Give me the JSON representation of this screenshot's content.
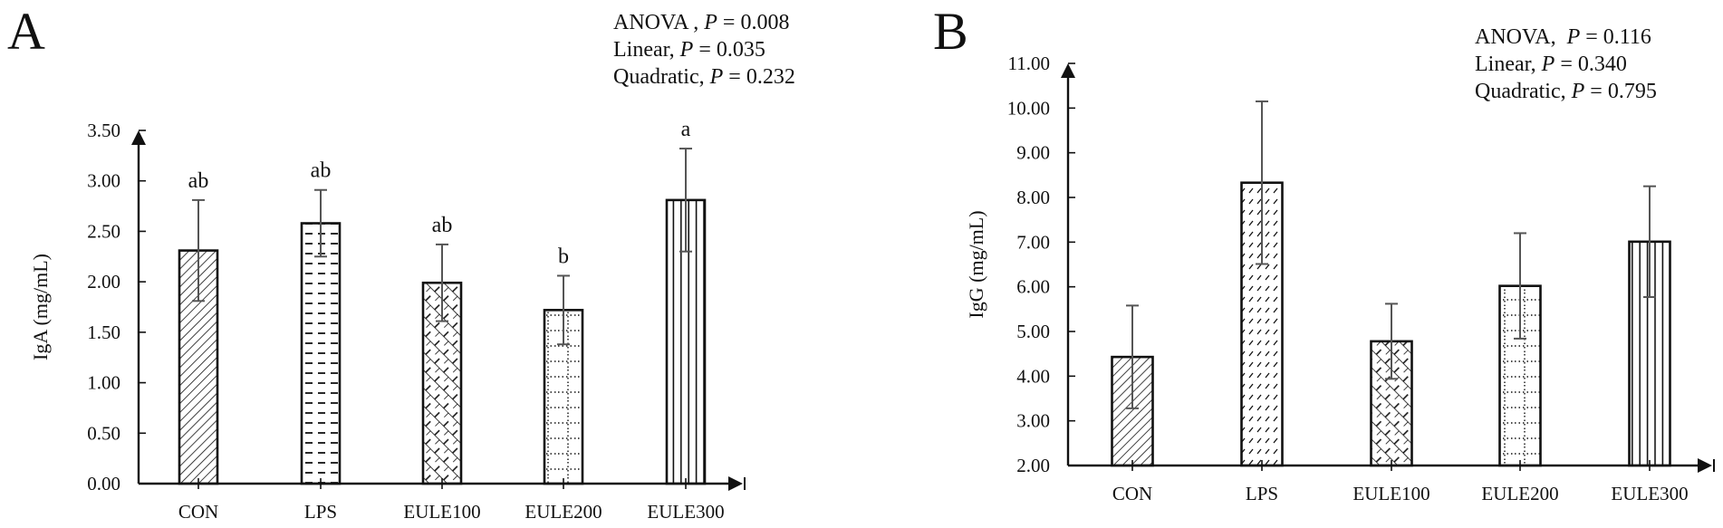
{
  "panels": {
    "A": {
      "letter": "A",
      "stats": [
        {
          "label": "ANOVA , ",
          "p": "P",
          "value": " = 0.008"
        },
        {
          "label": "Linear, ",
          "p": "P",
          "value": " = 0.035"
        },
        {
          "label": "Quadratic, ",
          "p": "P",
          "value": " = 0.232"
        }
      ]
    },
    "B": {
      "letter": "B",
      "stats": [
        {
          "label": "ANOVA,  ",
          "p": "P",
          "value": " = 0.116"
        },
        {
          "label": "Linear, ",
          "p": "P",
          "value": " = 0.340"
        },
        {
          "label": "Quadratic, ",
          "p": "P",
          "value": " = 0.795"
        }
      ]
    }
  },
  "chart_data": [
    {
      "type": "bar",
      "panel": "A",
      "title": "",
      "xlabel": "",
      "ylabel": "IgA (mg/mL)",
      "ylim": [
        0,
        3.5
      ],
      "yticks": [
        "0.00",
        "0.50",
        "1.00",
        "1.50",
        "2.00",
        "2.50",
        "3.00",
        "3.50"
      ],
      "categories": [
        "CON",
        "LPS",
        "EULE100",
        "EULE200",
        "EULE300"
      ],
      "values": [
        2.31,
        2.58,
        1.99,
        1.72,
        2.81
      ],
      "error": [
        0.5,
        0.33,
        0.38,
        0.34,
        0.51
      ],
      "significance": [
        "ab",
        "ab",
        "ab",
        "b",
        "a"
      ],
      "patterns": [
        "diagonal-hatch",
        "horizontal-dash",
        "crosshatch",
        "dotted-grid",
        "vertical-lines"
      ],
      "grid": false,
      "annotations": [
        "ANOVA , P = 0.008",
        "Linear, P = 0.035",
        "Quadratic, P = 0.232"
      ]
    },
    {
      "type": "bar",
      "panel": "B",
      "title": "",
      "xlabel": "",
      "ylabel": "IgG (mg/mL)",
      "ylim": [
        2,
        11
      ],
      "yticks": [
        "2.00",
        "3.00",
        "4.00",
        "5.00",
        "6.00",
        "7.00",
        "8.00",
        "9.00",
        "10.00",
        "11.00"
      ],
      "categories": [
        "CON",
        "LPS",
        "EULE100",
        "EULE200",
        "EULE300"
      ],
      "values": [
        4.43,
        8.33,
        4.78,
        6.02,
        7.01
      ],
      "error": [
        1.15,
        1.82,
        0.84,
        1.18,
        1.24
      ],
      "significance": [
        "",
        "",
        "",
        "",
        ""
      ],
      "patterns": [
        "diagonal-hatch",
        "dashed-diagonal",
        "crosshatch",
        "dotted-grid",
        "vertical-lines"
      ],
      "grid": false,
      "annotations": [
        "ANOVA,  P = 0.116",
        "Linear, P = 0.340",
        "Quadratic, P = 0.795"
      ]
    }
  ]
}
